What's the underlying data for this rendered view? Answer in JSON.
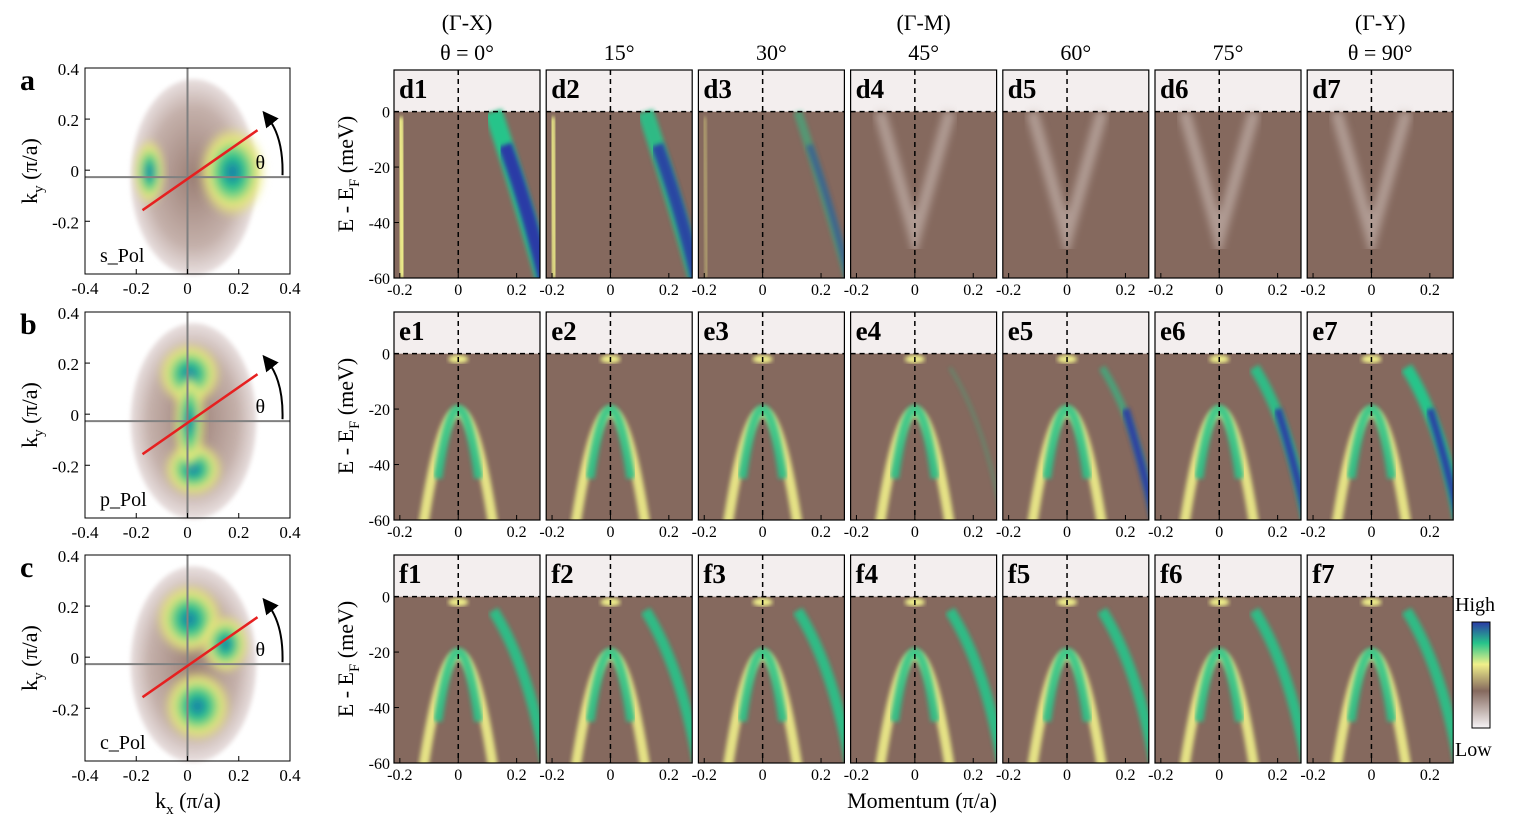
{
  "colors": {
    "low": "#f7f4f6",
    "brown": "#85695e",
    "yellow": "#f0f08a",
    "green": "#27c48a",
    "high": "#2a3aa6",
    "fermi_cut": "#e62020",
    "axis_line": "#808080"
  },
  "fermi_maps": [
    {
      "letter": "a",
      "pol": "s_Pol"
    },
    {
      "letter": "b",
      "pol": "p_Pol"
    },
    {
      "letter": "c",
      "pol": "c_Pol"
    }
  ],
  "fermi_axes": {
    "xlabel": "k",
    "xlabel_sub": "x",
    "xlabel_unit": " (π/a)",
    "ylabel": "k",
    "ylabel_sub": "y",
    "ylabel_unit": " (π/a)",
    "xticks": [
      "-0.4",
      "-0.2",
      "0",
      "0.2",
      "0.4"
    ],
    "yticks": [
      "0.4",
      "0.2",
      "0",
      "-0.2"
    ],
    "angle_symbol": "θ"
  },
  "column_headers": [
    {
      "line1": "(Γ-X)",
      "line2": "θ = 0°"
    },
    {
      "line1": "",
      "line2": "15°"
    },
    {
      "line1": "",
      "line2": "30°"
    },
    {
      "line1": "(Γ-M)",
      "line2": "45°"
    },
    {
      "line1": "",
      "line2": "60°"
    },
    {
      "line1": "",
      "line2": "75°"
    },
    {
      "line1": "(Γ-Y)",
      "line2": "θ = 90°"
    }
  ],
  "panel_rows": [
    {
      "prefix": "d",
      "labels": [
        "d1",
        "d2",
        "d3",
        "d4",
        "d5",
        "d6",
        "d7"
      ]
    },
    {
      "prefix": "e",
      "labels": [
        "e1",
        "e2",
        "e3",
        "e4",
        "e5",
        "e6",
        "e7"
      ]
    },
    {
      "prefix": "f",
      "labels": [
        "f1",
        "f2",
        "f3",
        "f4",
        "f5",
        "f6",
        "f7"
      ]
    }
  ],
  "spectra_axes": {
    "ylabel": "E - E",
    "ylabel_sub": "F",
    "ylabel_unit": " (meV)",
    "yticks": [
      "0",
      "-20",
      "-40",
      "-60"
    ],
    "xticks": [
      "-0.2",
      "0",
      "0.2"
    ],
    "xlabel": "Momentum (π/a)"
  },
  "colorbar": {
    "high": "High",
    "low": "Low"
  }
}
